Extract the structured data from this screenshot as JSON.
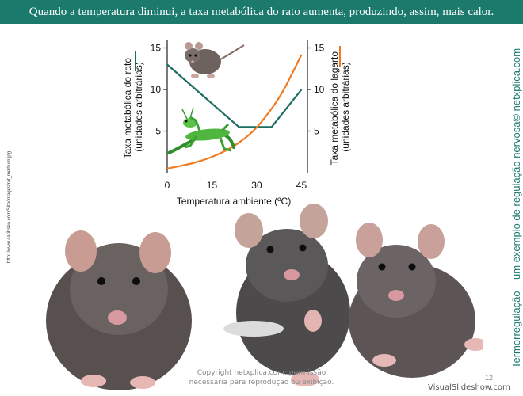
{
  "header": {
    "title": "Quando a temperatura diminui, a taxa metabólica do rato aumenta, produzindo, assim, mais calor."
  },
  "side_caption": "Termorregulação – um exemplo de regulação nervosa© netxplica.com",
  "source_url": "http://www.caribsea.com/Site/images/rat_medium.jpg",
  "copyright": "Copyright netxplica.com: permissão necessária para reprodução ou exibição.",
  "page_number": "12",
  "watermark": "VisualSlideshow.com",
  "chart_data": {
    "type": "line",
    "xlabel": "Temperatura ambiente (ºC)",
    "xlim": [
      0,
      47
    ],
    "xticks": [
      0,
      15,
      30,
      45
    ],
    "ylabel_left": "Taxa metabólica do rato (unidades arbitrárias)",
    "ylabel_left_lines": [
      "Taxa metabólica do rato",
      "(unidades arbitrárias)"
    ],
    "ylabel_right": "Taxa metabólica do lagarto (unidades arbitrárias)",
    "ylabel_right_lines": [
      "Taxa metabólica do lagarto",
      "(unidades arbitrárias)"
    ],
    "ylim": [
      0,
      16
    ],
    "yticks": [
      5,
      10,
      15
    ],
    "series": [
      {
        "name": "rato",
        "color": "#1b6f62",
        "axis": "left",
        "x": [
          0,
          24,
          35,
          45
        ],
        "y": [
          13,
          5.5,
          5.5,
          10
        ]
      },
      {
        "name": "lagarto",
        "color": "#f07a1f",
        "axis": "right",
        "x": [
          0,
          10,
          20,
          28,
          33,
          38,
          42,
          45
        ],
        "y": [
          0.5,
          1.2,
          2.6,
          4.6,
          6.7,
          9.2,
          12,
          14.2
        ]
      }
    ],
    "icons": [
      "rat-icon",
      "lizard-icon"
    ]
  }
}
